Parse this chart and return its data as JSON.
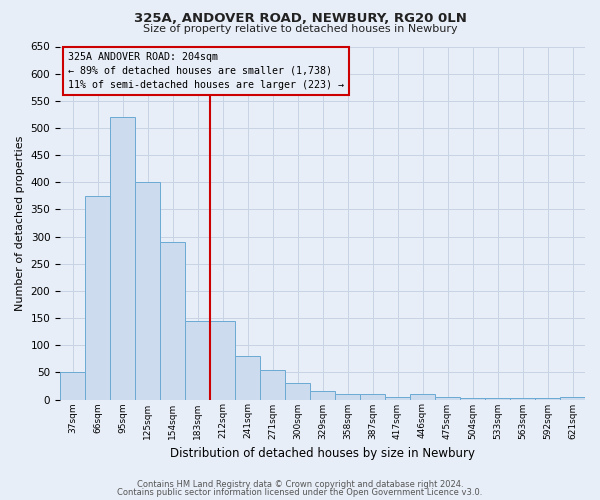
{
  "title": "325A, ANDOVER ROAD, NEWBURY, RG20 0LN",
  "subtitle": "Size of property relative to detached houses in Newbury",
  "xlabel": "Distribution of detached houses by size in Newbury",
  "ylabel": "Number of detached properties",
  "categories": [
    "37sqm",
    "66sqm",
    "95sqm",
    "125sqm",
    "154sqm",
    "183sqm",
    "212sqm",
    "241sqm",
    "271sqm",
    "300sqm",
    "329sqm",
    "358sqm",
    "387sqm",
    "417sqm",
    "446sqm",
    "475sqm",
    "504sqm",
    "533sqm",
    "563sqm",
    "592sqm",
    "621sqm"
  ],
  "values": [
    50,
    375,
    520,
    400,
    290,
    145,
    145,
    80,
    55,
    30,
    15,
    10,
    10,
    5,
    10,
    5,
    3,
    3,
    2,
    2,
    5
  ],
  "bar_facecolor": "#ccdcee",
  "bar_edgecolor": "#6baad4",
  "vline_bar_index": 6,
  "vline_color": "#cc0000",
  "annotation_line1": "325A ANDOVER ROAD: 204sqm",
  "annotation_line2": "← 89% of detached houses are smaller (1,738)",
  "annotation_line3": "11% of semi-detached houses are larger (223) →",
  "annotation_box_color": "#cc0000",
  "ylim": [
    0,
    650
  ],
  "yticks": [
    0,
    50,
    100,
    150,
    200,
    250,
    300,
    350,
    400,
    450,
    500,
    550,
    600,
    650
  ],
  "grid_color": "#c8d4e4",
  "bg_color": "#e8eef8",
  "footer1": "Contains HM Land Registry data © Crown copyright and database right 2024.",
  "footer2": "Contains public sector information licensed under the Open Government Licence v3.0."
}
